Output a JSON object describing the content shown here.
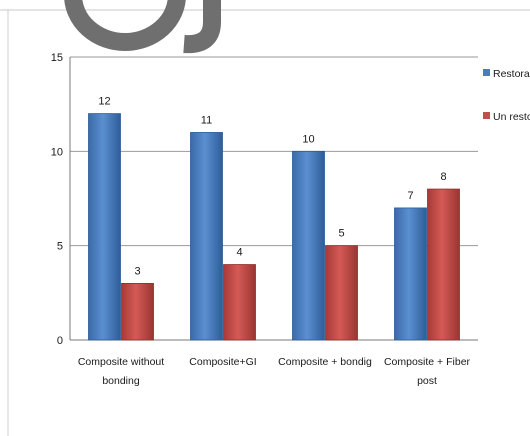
{
  "chart_data": {
    "type": "bar",
    "categories": [
      [
        "Composite without",
        "bonding"
      ],
      [
        "Composite+GI"
      ],
      [
        "Composite + bondig"
      ],
      [
        "Composite + Fiber",
        "post"
      ]
    ],
    "series": [
      {
        "name": "Restorabl",
        "color": "#4a7ebb",
        "values": [
          12,
          11,
          10,
          7
        ]
      },
      {
        "name": "Un restorable",
        "color": "#c0504d",
        "values": [
          3,
          4,
          5,
          8
        ]
      }
    ],
    "ylim": [
      0,
      15
    ],
    "yticks": [
      0,
      5,
      10,
      15
    ],
    "grid": true,
    "legend": "right",
    "watermark": "Oj"
  }
}
